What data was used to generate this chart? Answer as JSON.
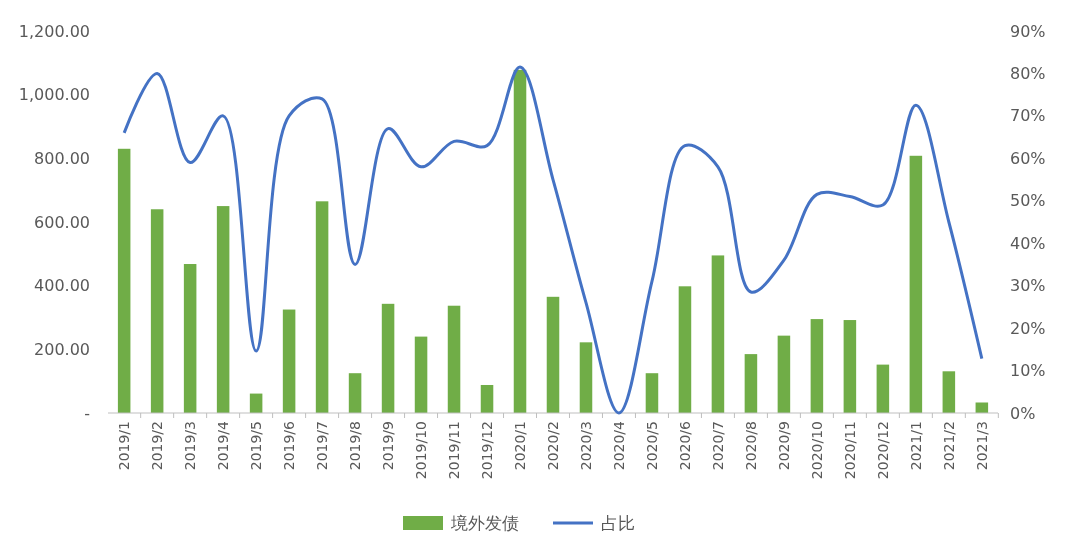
{
  "chart_data": {
    "type": "bar",
    "categories": [
      "2019/1",
      "2019/2",
      "2019/3",
      "2019/4",
      "2019/5",
      "2019/6",
      "2019/7",
      "2019/8",
      "2019/9",
      "2019/10",
      "2019/11",
      "2019/12",
      "2020/1",
      "2020/2",
      "2020/3",
      "2020/4",
      "2020/5",
      "2020/6",
      "2020/7",
      "2020/8",
      "2020/9",
      "2020/10",
      "2020/11",
      "2020/12",
      "2021/1",
      "2021/2",
      "2021/3"
    ],
    "series": [
      {
        "name": "境外发债",
        "color": "#70ad47",
        "values": [
          830,
          640,
          468,
          650,
          61,
          325,
          665,
          125,
          343,
          240,
          337,
          88,
          1078,
          365,
          222,
          0,
          125,
          398,
          495,
          185,
          243,
          295,
          292,
          152,
          808,
          131,
          33
        ]
      },
      {
        "name": "占比",
        "type": "line",
        "axis": "y2",
        "color": "#4472c4",
        "values": [
          66,
          80,
          59,
          70,
          14.6,
          70,
          74,
          35,
          67,
          58,
          64,
          63,
          81.5,
          55,
          26,
          0,
          31,
          63,
          58,
          28.5,
          36,
          51.5,
          51,
          49,
          72.5,
          45,
          12.8
        ]
      }
    ],
    "ylim": [
      0,
      1200
    ],
    "yticks": [
      {
        "value": 0,
        "label": "-"
      },
      {
        "value": 200,
        "label": "200.00"
      },
      {
        "value": 400,
        "label": "400.00"
      },
      {
        "value": 600,
        "label": "600.00"
      },
      {
        "value": 800,
        "label": "800.00"
      },
      {
        "value": 1000,
        "label": "1,000.00"
      },
      {
        "value": 1200,
        "label": "1,200.00"
      }
    ],
    "y2lim": [
      0,
      90
    ],
    "y2ticks": [
      {
        "value": 0,
        "label": "0%"
      },
      {
        "value": 10,
        "label": "10%"
      },
      {
        "value": 20,
        "label": "20%"
      },
      {
        "value": 30,
        "label": "30%"
      },
      {
        "value": 40,
        "label": "40%"
      },
      {
        "value": 50,
        "label": "50%"
      },
      {
        "value": 60,
        "label": "60%"
      },
      {
        "value": 70,
        "label": "70%"
      },
      {
        "value": 80,
        "label": "80%"
      },
      {
        "value": 90,
        "label": "90%"
      }
    ],
    "legend": "bottom",
    "grid": false,
    "marker": "none"
  }
}
